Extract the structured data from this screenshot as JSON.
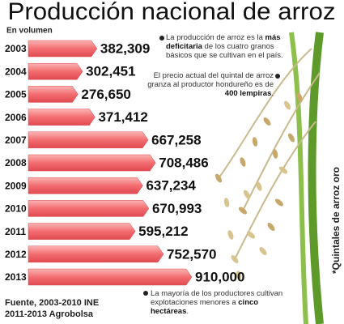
{
  "chart_data": {
    "type": "bar",
    "orientation": "horizontal",
    "title": "Producción nacional de arroz",
    "subtitle": "En volumen",
    "unit_label": "*Quintales de arroz oro",
    "categories": [
      "2003",
      "2004",
      "2005",
      "2006",
      "2007",
      "2008",
      "2009",
      "2010",
      "2011",
      "2012",
      "2013"
    ],
    "values": [
      382309,
      302451,
      276650,
      371412,
      667258,
      708486,
      637234,
      670993,
      595212,
      752570,
      910000
    ],
    "value_labels": [
      "382,309",
      "302,451",
      "276,650",
      "371,412",
      "667,258",
      "708,486",
      "637,234",
      "670,993",
      "595,212",
      "752,570",
      "910,000"
    ],
    "color": "#f26d70",
    "annotations": [
      [
        "La producción de arroz es la ",
        "más deficitaria",
        " de los cuatro granos básicos que se cultivan en el país."
      ],
      [
        "El precio actual del quintal de arroz granza al productor hondureño es de ",
        "400 lempiras",
        "."
      ],
      [
        "La mayoría de los productores cultivan explotaciones menores a ",
        "cinco hectáreas",
        "."
      ]
    ],
    "source": [
      "Fuente, 2003-2010 INE",
      "2011-2013 Agrobolsa"
    ]
  }
}
